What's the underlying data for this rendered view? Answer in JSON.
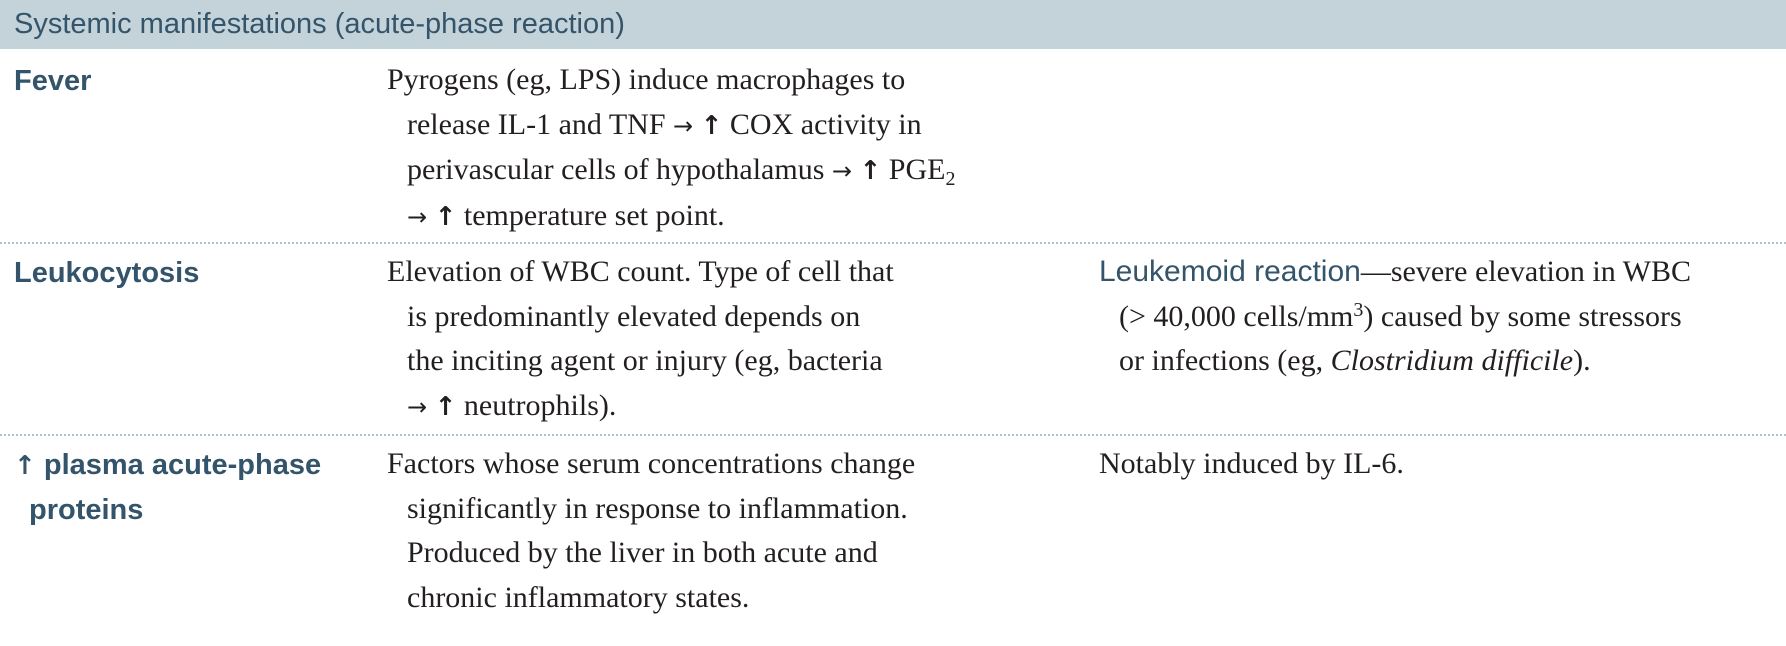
{
  "header": {
    "title": "Systemic manifestations (acute-phase reaction)"
  },
  "rows": [
    {
      "term": "Fever",
      "description": {
        "l1": "Pyrogens (eg, LPS) induce macrophages to",
        "l2a": "release IL-1 and TNF",
        "l2b": "COX activity in",
        "l3a": "perivascular cells of hypothalamus",
        "l3b": "PGE",
        "l3sub": "2",
        "l4": "temperature set point."
      }
    },
    {
      "term": "Leukocytosis",
      "description": {
        "l1": "Elevation of WBC count. Type of cell that",
        "l2": "is predominantly elevated depends on",
        "l3": "the inciting agent or injury (eg, bacteria",
        "l4": "neutrophils)."
      },
      "note": {
        "keyword": "Leukemoid reaction",
        "l1": "—severe elevation in WBC",
        "l2a": "(> 40,000 cells/mm",
        "l2sup": "3",
        "l2b": ") caused by some stressors",
        "l3a": "or infections (eg, ",
        "l3em": "Clostridium difficile",
        "l3b": ")."
      }
    },
    {
      "term_line1": "plasma acute-phase",
      "term_line2": "proteins",
      "description": {
        "l1": "Factors whose serum concentrations change",
        "l2": "significantly in response to inflammation.",
        "l3": "Produced by the liver in both acute and",
        "l4": "chronic inflammatory states."
      },
      "note": {
        "l1": "Notably induced by IL-6."
      }
    }
  ],
  "symbols": {
    "arrow": "→",
    "up": "↑"
  }
}
